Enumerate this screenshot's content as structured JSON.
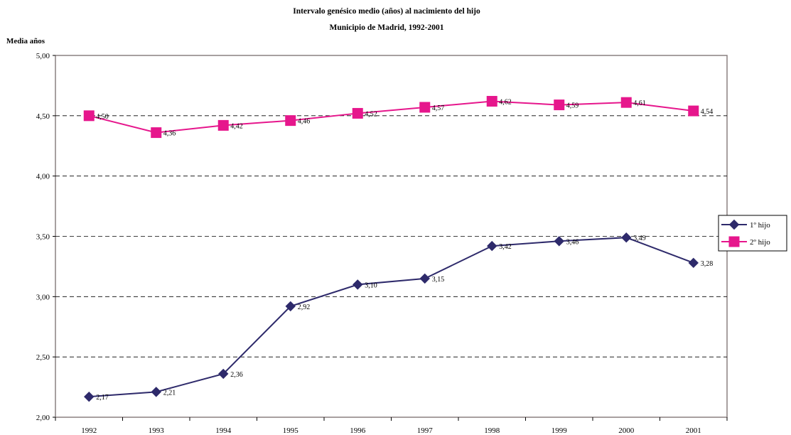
{
  "chart_data": {
    "type": "line",
    "title": "Intervalo genésico medio (años) al nacimiento del hijo",
    "subtitle": "Municipio de Madrid, 1992-2001",
    "xlabel": "",
    "ylabel": "Media años",
    "categories": [
      "1992",
      "1993",
      "1994",
      "1995",
      "1996",
      "1997",
      "1998",
      "1999",
      "2000",
      "2001"
    ],
    "yticks": [
      "2,00",
      "2,50",
      "3,00",
      "3,50",
      "4,00",
      "4,50",
      "5,00"
    ],
    "ylim": [
      2,
      5
    ],
    "grid": "horizontal dashed",
    "legend_position": "right",
    "series": [
      {
        "name": "1º hijo",
        "marker": "diamond",
        "color": "#2e2a6b",
        "values": [
          2.17,
          2.21,
          2.36,
          2.92,
          3.1,
          3.15,
          3.42,
          3.46,
          3.49,
          3.28
        ],
        "labels": [
          "2,17",
          "2,21",
          "2,36",
          "2,92",
          "3,10",
          "3,15",
          "3,42",
          "3,46",
          "3,49",
          "3,28"
        ]
      },
      {
        "name": "2º hijo",
        "marker": "square",
        "color": "#e6168c",
        "values": [
          4.5,
          4.36,
          4.42,
          4.46,
          4.52,
          4.57,
          4.62,
          4.59,
          4.61,
          4.54
        ],
        "labels": [
          "4,50",
          "4,36",
          "4,42",
          "4,46",
          "4,52",
          "4,57",
          "4,62",
          "4,59",
          "4,61",
          "4,54"
        ]
      }
    ]
  }
}
